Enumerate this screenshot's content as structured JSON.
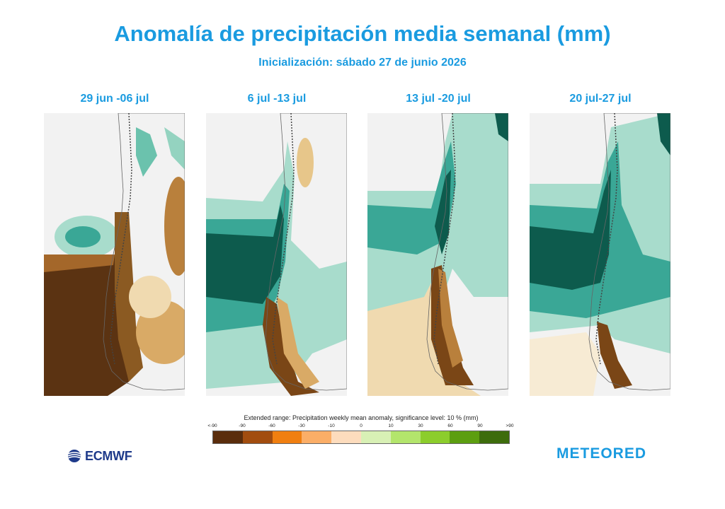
{
  "title": "Anomalía de precipitación media semanal (mm)",
  "subtitle": "Inicialización: sábado 27 de junio 2026",
  "panels": [
    {
      "label": "29 jun -06 jul"
    },
    {
      "label": "6 jul -13 jul"
    },
    {
      "label": "13 jul -20 jul"
    },
    {
      "label": "20 jul-27 jul"
    }
  ],
  "legend": {
    "title": "Extended range: Precipitation weekly mean anomaly, significance level: 10 % (mm)",
    "ticks": [
      "<-90",
      "-90",
      "-60",
      "-30",
      "-10",
      "0",
      "10",
      "30",
      "60",
      "90",
      ">90"
    ],
    "colors": [
      "#5a2d0c",
      "#a24d0f",
      "#f07f10",
      "#fbae67",
      "#fddcbd",
      "#d8f0b5",
      "#b3e56c",
      "#8ccd2c",
      "#5c9e10",
      "#3d6c0c"
    ]
  },
  "logos": {
    "ecmwf": "ECMWF",
    "meteored": "METEORED"
  }
}
